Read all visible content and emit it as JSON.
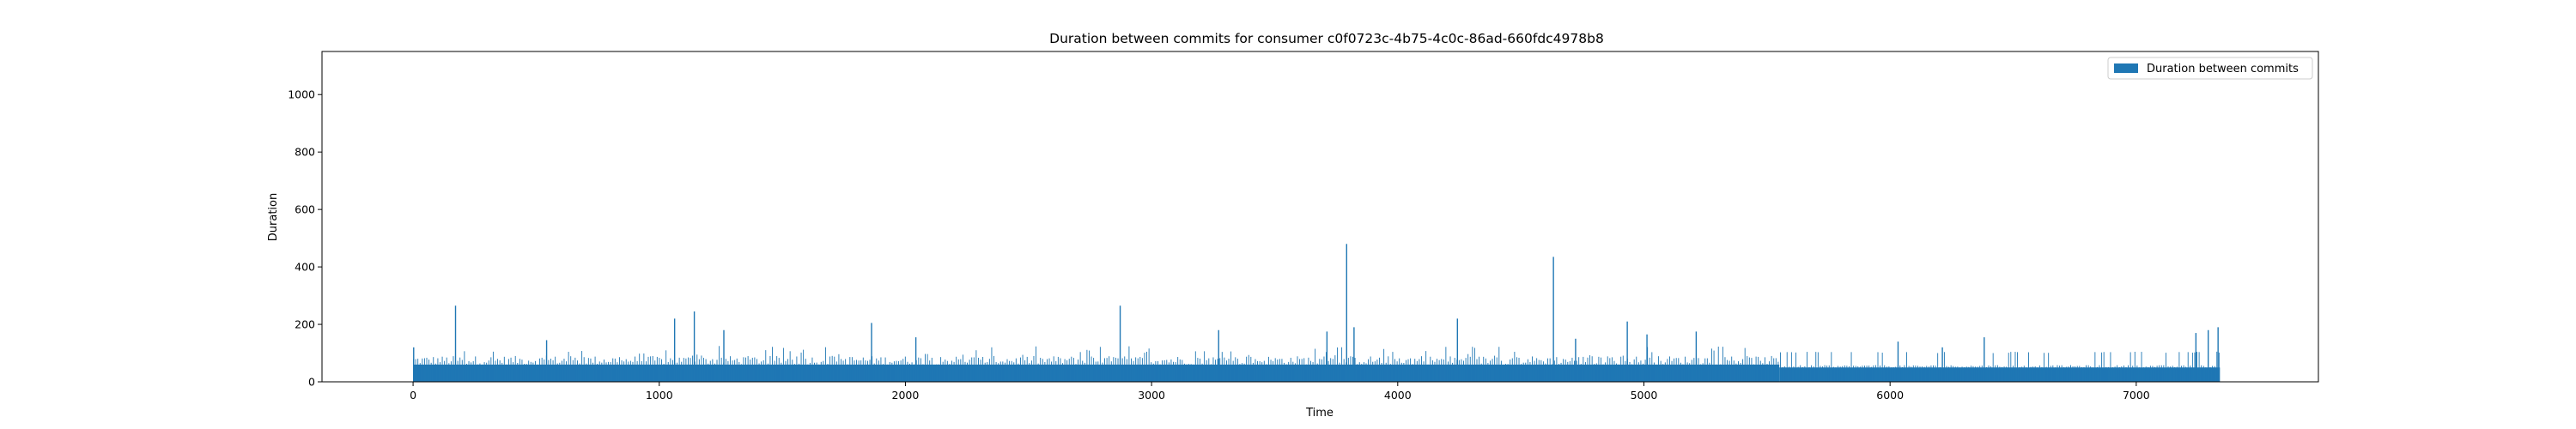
{
  "chart_data": {
    "type": "bar",
    "title": "Duration between commits for consumer c0f0723c-4b75-4c0c-86ad-660fdc4978b8",
    "xlabel": "Time",
    "ylabel": "Duration",
    "xlim": [
      -370,
      7740
    ],
    "ylim": [
      0,
      1150
    ],
    "xticks": [
      0,
      1000,
      2000,
      3000,
      4000,
      5000,
      6000,
      7000
    ],
    "yticks": [
      0,
      200,
      400,
      600,
      800,
      1000
    ],
    "grid": false,
    "legend_position": "top-right",
    "series": [
      {
        "name": "Duration between commits",
        "color": "#1f77b4",
        "x_range": [
          0,
          7340
        ],
        "baseline_values": [
          {
            "x_start": 0,
            "x_end": 5550,
            "value": 60
          },
          {
            "x_start": 5550,
            "x_end": 7340,
            "value": 50
          }
        ],
        "peaks": [
          {
            "x": 0,
            "value": 120
          },
          {
            "x": 170,
            "value": 265
          },
          {
            "x": 540,
            "value": 145
          },
          {
            "x": 1060,
            "value": 220
          },
          {
            "x": 1140,
            "value": 245
          },
          {
            "x": 1260,
            "value": 180
          },
          {
            "x": 1860,
            "value": 205
          },
          {
            "x": 2040,
            "value": 155
          },
          {
            "x": 2870,
            "value": 265
          },
          {
            "x": 3270,
            "value": 180
          },
          {
            "x": 3710,
            "value": 175
          },
          {
            "x": 3790,
            "value": 480
          },
          {
            "x": 3820,
            "value": 190
          },
          {
            "x": 4240,
            "value": 220
          },
          {
            "x": 4630,
            "value": 435
          },
          {
            "x": 4720,
            "value": 150
          },
          {
            "x": 4930,
            "value": 210
          },
          {
            "x": 5010,
            "value": 165
          },
          {
            "x": 5210,
            "value": 175
          },
          {
            "x": 6030,
            "value": 140
          },
          {
            "x": 6210,
            "value": 120
          },
          {
            "x": 6380,
            "value": 155
          },
          {
            "x": 7240,
            "value": 170
          },
          {
            "x": 7290,
            "value": 180
          },
          {
            "x": 7330,
            "value": 190
          }
        ]
      }
    ]
  }
}
